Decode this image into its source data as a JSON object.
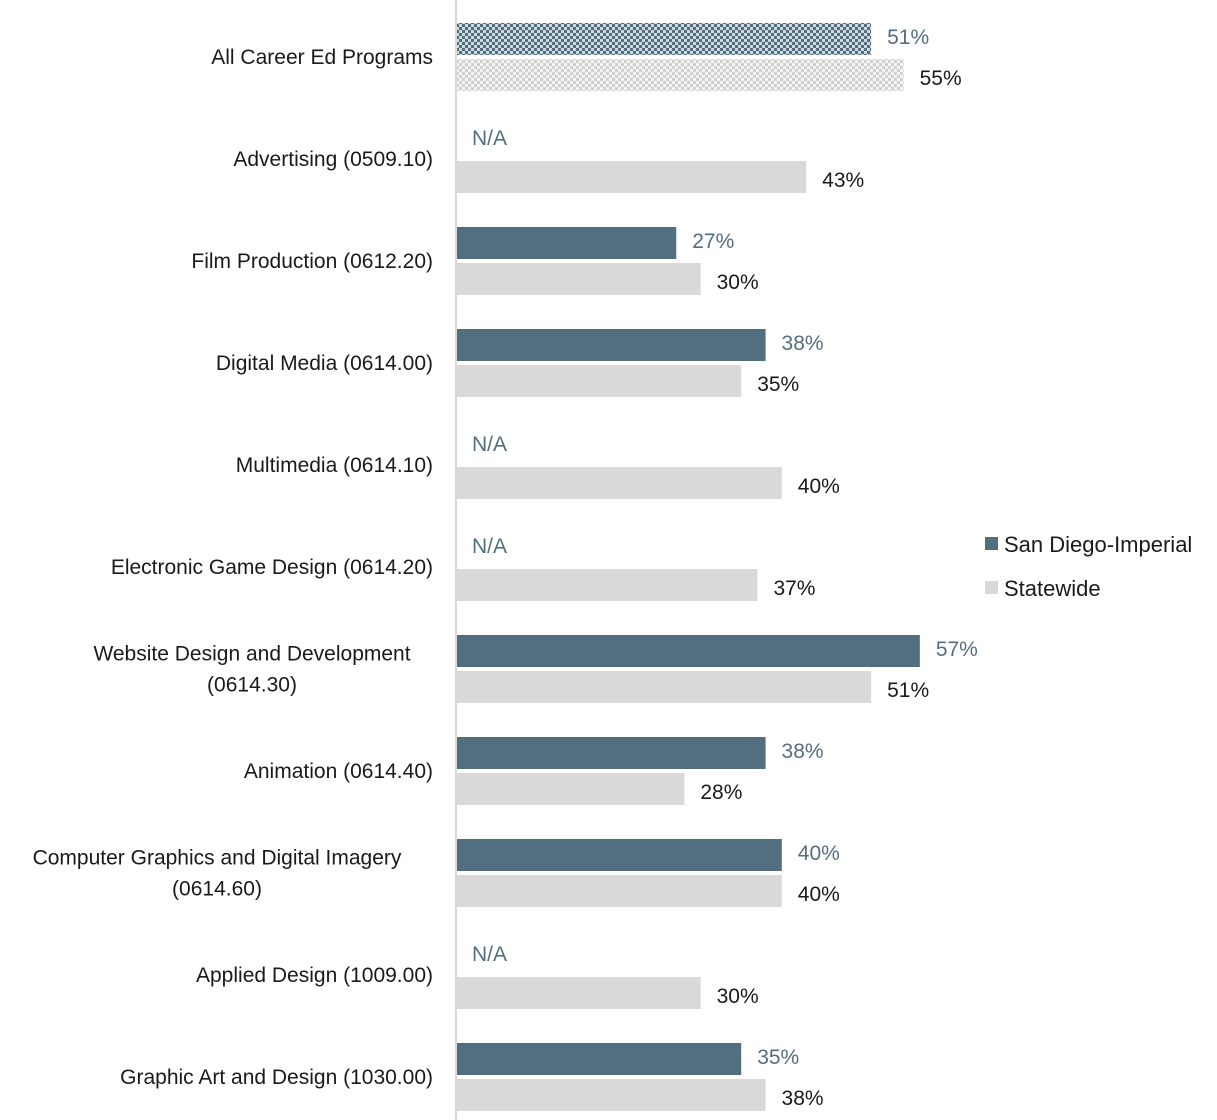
{
  "chart_data": {
    "type": "bar",
    "orientation": "horizontal",
    "categories": [
      [
        "All Career Ed Programs"
      ],
      [
        "Advertising (0509.10)"
      ],
      [
        "Film Production (0612.20)"
      ],
      [
        "Digital Media (0614.00)"
      ],
      [
        "Multimedia (0614.10)"
      ],
      [
        "Electronic Game Design (0614.20)"
      ],
      [
        "Website Design and Development",
        "(0614.30)"
      ],
      [
        "Animation (0614.40)"
      ],
      [
        "Computer Graphics and Digital Imagery",
        "(0614.60)"
      ],
      [
        "Applied Design (1009.00)"
      ],
      [
        "Graphic Art and Design (1030.00)"
      ]
    ],
    "series": [
      {
        "name": "San Diego-Imperial",
        "color": "#526f80",
        "label_color": "#526f80",
        "values": [
          51,
          null,
          27,
          38,
          null,
          null,
          57,
          38,
          40,
          null,
          35
        ],
        "labels": [
          "51%",
          "N/A",
          "27%",
          "38%",
          "N/A",
          "N/A",
          "57%",
          "38%",
          "40%",
          "N/A",
          "35%"
        ]
      },
      {
        "name": "Statewide",
        "color": "#d9d9d9",
        "label_color": "#1a1a1a",
        "values": [
          55,
          43,
          30,
          35,
          40,
          37,
          51,
          28,
          40,
          30,
          38
        ],
        "labels": [
          "55%",
          "43%",
          "30%",
          "35%",
          "40%",
          "37%",
          "51%",
          "28%",
          "40%",
          "30%",
          "38%"
        ]
      }
    ],
    "patterned_category_index": 0,
    "xlim": [
      0,
      100
    ],
    "grid": false,
    "legend_position": "right"
  }
}
